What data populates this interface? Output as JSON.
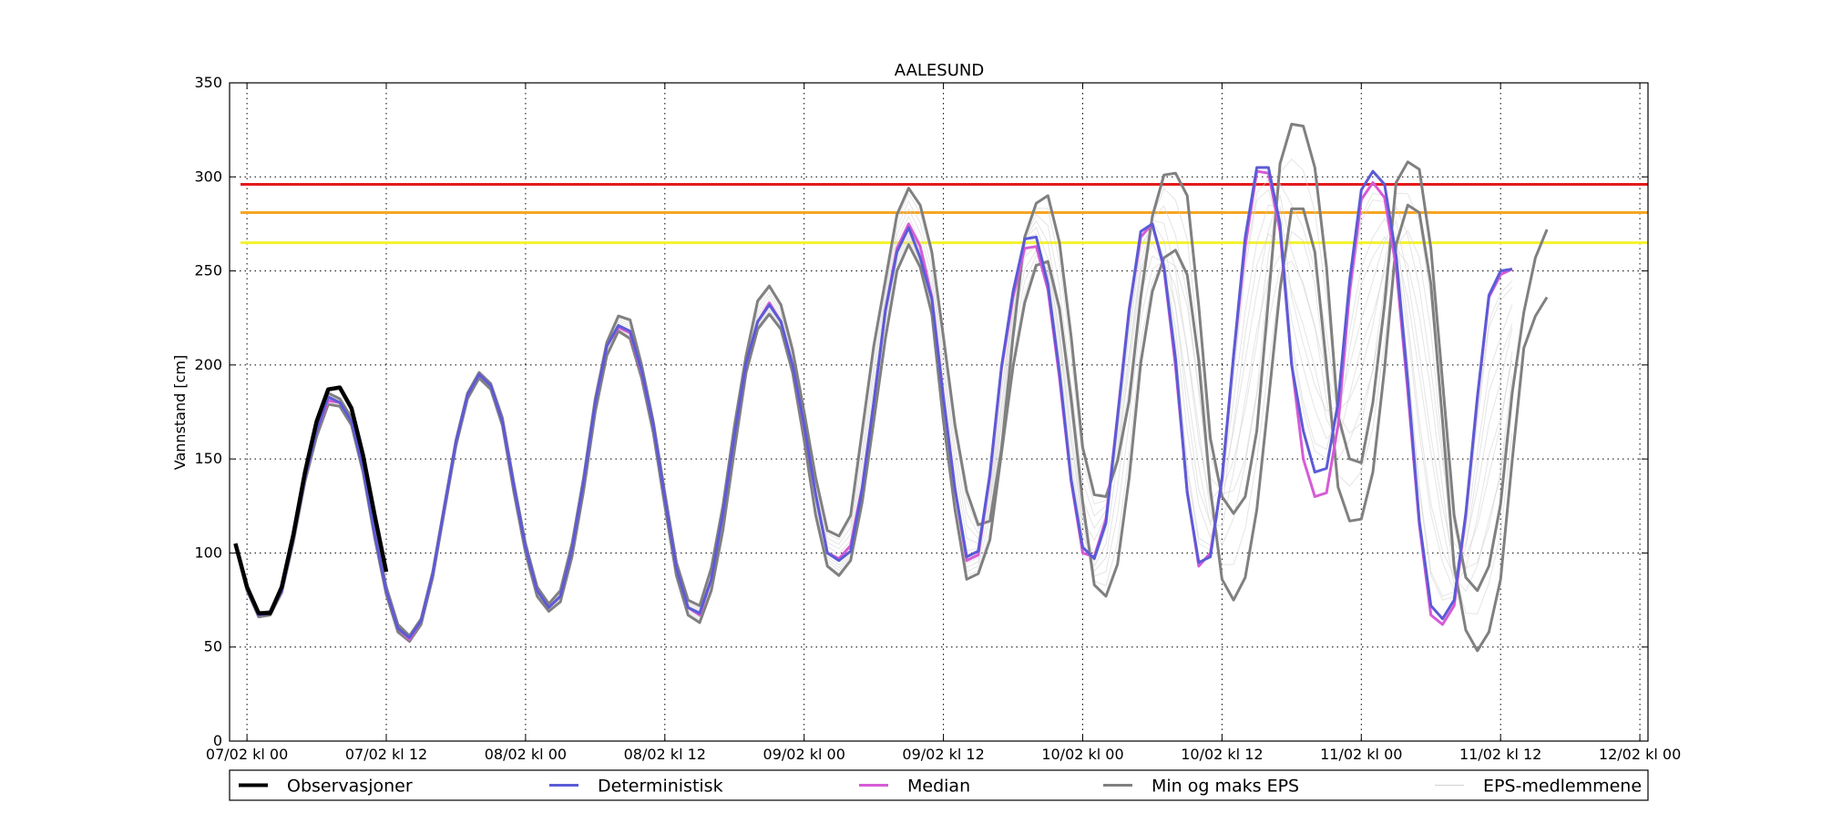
{
  "chart_data": {
    "type": "line",
    "title": "AALESUND",
    "xlabel": "",
    "ylabel": "Vannstand [cm]",
    "ylim": [
      0,
      350
    ],
    "yticks": [
      0,
      50,
      100,
      150,
      200,
      250,
      300,
      350
    ],
    "x_range_hours": [
      -1.5,
      120.7
    ],
    "xtick_hours": [
      0,
      12,
      24,
      36,
      48,
      60,
      72,
      84,
      96,
      108,
      120
    ],
    "xtick_labels": [
      "07/02 kl 00",
      "07/02 kl 12",
      "08/02 kl 00",
      "08/02 kl 12",
      "09/02 kl 00",
      "09/02 kl 12",
      "10/02 kl 00",
      "10/02 kl 12",
      "11/02 kl 00",
      "11/02 kl 12",
      "12/02 kl 00"
    ],
    "grid": true,
    "legend_position": "below",
    "thresholds": [
      {
        "value": 296,
        "color": "#e31a1c"
      },
      {
        "value": 281,
        "color": "#f5a623"
      },
      {
        "value": 265,
        "color": "#f5f22a"
      }
    ],
    "series": [
      {
        "name": "Observasjoner",
        "color": "#000000",
        "x_hours": [
          -1,
          0,
          1,
          2,
          3,
          4,
          5,
          6,
          7,
          8,
          9,
          10,
          11,
          12,
          13,
          14
        ],
        "values": [
          105,
          82,
          68,
          68,
          82,
          110,
          143,
          170,
          187,
          188,
          177,
          152,
          120,
          90,
          null,
          null
        ]
      },
      {
        "name": "Deterministisk",
        "color": "#5b5bd6",
        "x_start_hour": -1,
        "values": [
          105,
          81,
          67,
          68,
          80,
          108,
          140,
          165,
          183,
          180,
          170,
          145,
          110,
          80,
          60,
          55,
          64,
          89,
          124,
          159,
          184,
          195,
          189,
          170,
          135,
          103,
          80,
          71,
          77,
          102,
          138,
          180,
          210,
          221,
          218,
          197,
          168,
          129,
          92,
          71,
          68,
          86,
          121,
          163,
          201,
          223,
          232,
          223,
          200,
          168,
          131,
          100,
          96,
          101,
          134,
          180,
          229,
          260,
          273,
          257,
          235,
          182,
          134,
          98,
          101,
          142,
          199,
          239,
          267,
          268,
          243,
          196,
          139,
          103,
          97,
          116,
          172,
          229,
          271,
          275,
          252,
          203,
          132,
          95,
          98,
          140,
          205,
          268,
          305,
          305,
          275,
          200,
          165,
          143,
          145,
          180,
          245,
          293,
          303,
          296,
          258,
          191,
          117,
          72,
          65,
          75,
          121,
          183,
          237,
          250,
          251
        ]
      },
      {
        "name": "Median",
        "color": "#d65bd6",
        "x_start_hour": -1,
        "values": [
          105,
          81,
          67,
          68,
          80,
          108,
          140,
          165,
          181,
          180,
          170,
          145,
          110,
          80,
          60,
          54,
          64,
          89,
          124,
          159,
          184,
          195,
          189,
          170,
          135,
          103,
          80,
          71,
          77,
          102,
          138,
          180,
          210,
          220,
          217,
          196,
          168,
          129,
          92,
          71,
          67,
          86,
          121,
          163,
          201,
          223,
          233,
          223,
          200,
          167,
          131,
          100,
          97,
          104,
          135,
          180,
          229,
          262,
          275,
          263,
          236,
          183,
          134,
          96,
          99,
          141,
          198,
          236,
          262,
          263,
          240,
          193,
          138,
          100,
          98,
          118,
          173,
          230,
          268,
          275,
          251,
          199,
          133,
          93,
          100,
          139,
          205,
          263,
          303,
          302,
          271,
          201,
          150,
          130,
          132,
          168,
          239,
          288,
          297,
          289,
          252,
          186,
          115,
          67,
          62,
          72,
          120,
          182,
          236,
          248,
          251
        ]
      },
      {
        "name": "Min og maks EPS",
        "color": "#808080",
        "x_start_hour": -1,
        "max": [
          105,
          82,
          68,
          69,
          82,
          110,
          143,
          168,
          185,
          182,
          172,
          147,
          112,
          82,
          62,
          56,
          65,
          90,
          125,
          160,
          185,
          196,
          190,
          172,
          137,
          105,
          82,
          73,
          80,
          105,
          140,
          182,
          212,
          226,
          224,
          200,
          170,
          132,
          95,
          75,
          72,
          92,
          125,
          168,
          205,
          234,
          242,
          232,
          208,
          175,
          140,
          112,
          109,
          120,
          165,
          210,
          245,
          280,
          294,
          285,
          260,
          215,
          168,
          133,
          115,
          117,
          155,
          215,
          268,
          286,
          290,
          265,
          215,
          156,
          131,
          130,
          149,
          181,
          236,
          279,
          301,
          302,
          290,
          231,
          161,
          130,
          121,
          130,
          165,
          235,
          307,
          328,
          327,
          305,
          252,
          173,
          150,
          148,
          180,
          232,
          297,
          308,
          304,
          262,
          191,
          120,
          87,
          80,
          93,
          126,
          185,
          228,
          257,
          272
        ]
      },
      {
        "name": "EPS-medlemmene",
        "color": "#d3d3d3"
      }
    ],
    "minmax_min": [
      104,
      80,
      66,
      67,
      79,
      106,
      138,
      162,
      179,
      178,
      168,
      143,
      108,
      78,
      58,
      53,
      62,
      87,
      122,
      157,
      182,
      193,
      187,
      168,
      132,
      100,
      77,
      69,
      74,
      98,
      133,
      175,
      205,
      218,
      214,
      193,
      164,
      125,
      88,
      67,
      63,
      80,
      112,
      155,
      196,
      219,
      227,
      219,
      196,
      160,
      120,
      93,
      88,
      96,
      127,
      170,
      214,
      250,
      264,
      252,
      227,
      170,
      123,
      86,
      89,
      107,
      153,
      199,
      233,
      253,
      255,
      230,
      182,
      127,
      83,
      77,
      94,
      140,
      201,
      239,
      257,
      261,
      248,
      202,
      134,
      86,
      75,
      87,
      123,
      181,
      240,
      283,
      283,
      260,
      200,
      135,
      117,
      118,
      143,
      198,
      264,
      285,
      281,
      243,
      170,
      93,
      59,
      48,
      58,
      86,
      149,
      209,
      226,
      236
    ]
  },
  "legend": [
    {
      "label": "Observasjoner",
      "color": "#000000",
      "width": 4
    },
    {
      "label": "Deterministisk",
      "color": "#5b5bd6",
      "width": 3
    },
    {
      "label": "Median",
      "color": "#d65bd6",
      "width": 3
    },
    {
      "label": "Min og maks EPS",
      "color": "#808080",
      "width": 3
    },
    {
      "label": "EPS-medlemmene",
      "color": "#d3d3d3",
      "width": 1
    }
  ]
}
